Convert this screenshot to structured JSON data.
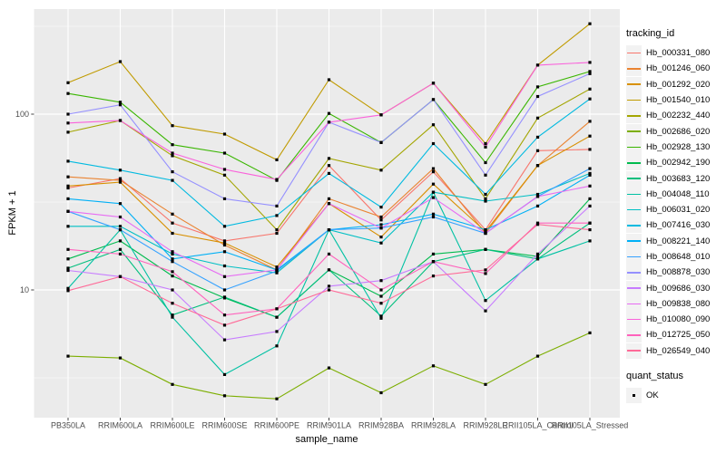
{
  "figure": {
    "xlabel": "sample_name",
    "ylabel": "FPKM + 1",
    "legend_title": "tracking_id",
    "quant_legend_title": "quant_status",
    "quant_legend_entry": "OK"
  },
  "style": {
    "panel_bg": "#EBEBEB",
    "grid_color": "#FFFFFF",
    "axis_text_color": "#4D4D4D",
    "tick_color": "#333333",
    "point_color": "#000000",
    "legend_key_bg": "#F2F2F2"
  },
  "chart_data": {
    "type": "line",
    "title": "",
    "xlabel": "sample_name",
    "ylabel": "FPKM + 1",
    "x_categories": [
      "PB350LA",
      "RRIM600LA",
      "RRIM600LE",
      "RRIM600SE",
      "RRIM600PE",
      "RRIM901LA",
      "RRIM928BA",
      "RRIM928LA",
      "RRIM928LE",
      "RRII105LA_Control",
      "RRII105LA_Stressed"
    ],
    "y_scale": "log10",
    "y_ticks": [
      10,
      100
    ],
    "y_minor_ticks": [
      3.1623,
      31.623,
      316.23
    ],
    "ylim": [
      2,
      380
    ],
    "grid": "white major/minor on gray panel",
    "legend_position": "right",
    "point_marker": {
      "shape": "square",
      "color": "#000000",
      "legend": "quant_status",
      "label": "OK"
    },
    "series": [
      {
        "name": "Hb_000331_080",
        "color": "#F8766D",
        "values": [
          38,
          43,
          24,
          19,
          21,
          51,
          25,
          47,
          22,
          62,
          63
        ]
      },
      {
        "name": "Hb_001246_060",
        "color": "#EA8331",
        "values": [
          44,
          42,
          27,
          18,
          13,
          33,
          26,
          49,
          21,
          51,
          91
        ]
      },
      {
        "name": "Hb_001292_020",
        "color": "#D89000",
        "values": [
          39,
          41,
          21,
          18.5,
          13.5,
          31,
          20,
          40,
          21.5,
          51,
          75
        ]
      },
      {
        "name": "Hb_001540_010",
        "color": "#C09B00",
        "values": [
          151,
          199,
          86,
          77,
          55,
          157,
          99,
          150,
          68,
          190,
          327
        ]
      },
      {
        "name": "Hb_002232_440",
        "color": "#A3A500",
        "values": [
          79,
          92,
          58,
          45,
          22,
          56,
          48,
          87,
          33,
          95,
          139
        ]
      },
      {
        "name": "Hb_002686_020",
        "color": "#7CAE00",
        "values": [
          4.2,
          4.1,
          2.9,
          2.5,
          2.4,
          3.6,
          2.6,
          3.7,
          2.9,
          4.2,
          5.7
        ]
      },
      {
        "name": "Hb_002928_130",
        "color": "#39B600",
        "values": [
          131,
          117,
          67,
          60,
          42,
          101,
          69,
          121,
          53,
          143,
          175
        ]
      },
      {
        "name": "Hb_002942_190",
        "color": "#00BB4E",
        "values": [
          15,
          19,
          12,
          9,
          7,
          13,
          9.2,
          16,
          17,
          15.5,
          33
        ]
      },
      {
        "name": "Hb_003683_120",
        "color": "#00BF7D",
        "values": [
          13.3,
          17,
          7.2,
          9.1,
          7,
          13,
          7.1,
          14.5,
          17,
          15,
          24
        ]
      },
      {
        "name": "Hb_004048_110",
        "color": "#00C1A3",
        "values": [
          10.2,
          22,
          7,
          3.3,
          4.8,
          22,
          6.9,
          36,
          8.7,
          15,
          19
        ]
      },
      {
        "name": "Hb_006031_020",
        "color": "#00BFC4",
        "values": [
          23,
          23,
          16,
          13.7,
          12.5,
          22,
          18.5,
          36,
          32,
          35,
          46
        ]
      },
      {
        "name": "Hb_007416_030",
        "color": "#00BAE0",
        "values": [
          54,
          48,
          42,
          23,
          26.5,
          46,
          29.6,
          68,
          35,
          74,
          122
        ]
      },
      {
        "name": "Hb_008221_140",
        "color": "#00B0F6",
        "values": [
          33,
          31,
          15,
          16.5,
          13,
          22,
          23.5,
          27,
          22,
          30,
          45
        ]
      },
      {
        "name": "Hb_008648_010",
        "color": "#35A2FF",
        "values": [
          28,
          22,
          14.5,
          10,
          12.8,
          22,
          22.5,
          26,
          21,
          34,
          49
        ]
      },
      {
        "name": "Hb_008878_030",
        "color": "#9590FF",
        "values": [
          100,
          113,
          47,
          33,
          30,
          90,
          69,
          121,
          45,
          126,
          170
        ]
      },
      {
        "name": "Hb_009686_030",
        "color": "#C77CFF",
        "values": [
          12.9,
          11.9,
          10,
          5.2,
          5.8,
          10.5,
          11.3,
          14.5,
          7.6,
          16,
          30
        ]
      },
      {
        "name": "Hb_009838_080",
        "color": "#E76BF3",
        "values": [
          28,
          26,
          16.5,
          11.9,
          13,
          31,
          22.5,
          33.5,
          21,
          34,
          39
        ]
      },
      {
        "name": "Hb_010080_090",
        "color": "#FA62DB",
        "values": [
          89,
          92,
          60,
          48.5,
          42.5,
          90,
          99,
          150,
          65,
          190,
          197
        ]
      },
      {
        "name": "Hb_012725_050",
        "color": "#FF62BC",
        "values": [
          17,
          16,
          12.7,
          7.2,
          7.8,
          16,
          10,
          14.5,
          12.4,
          24,
          24
        ]
      },
      {
        "name": "Hb_026549_040",
        "color": "#FF6A98",
        "values": [
          9.9,
          11.9,
          8.4,
          6.3,
          7.8,
          10,
          8.4,
          12,
          13,
          23.6,
          22
        ]
      }
    ]
  }
}
